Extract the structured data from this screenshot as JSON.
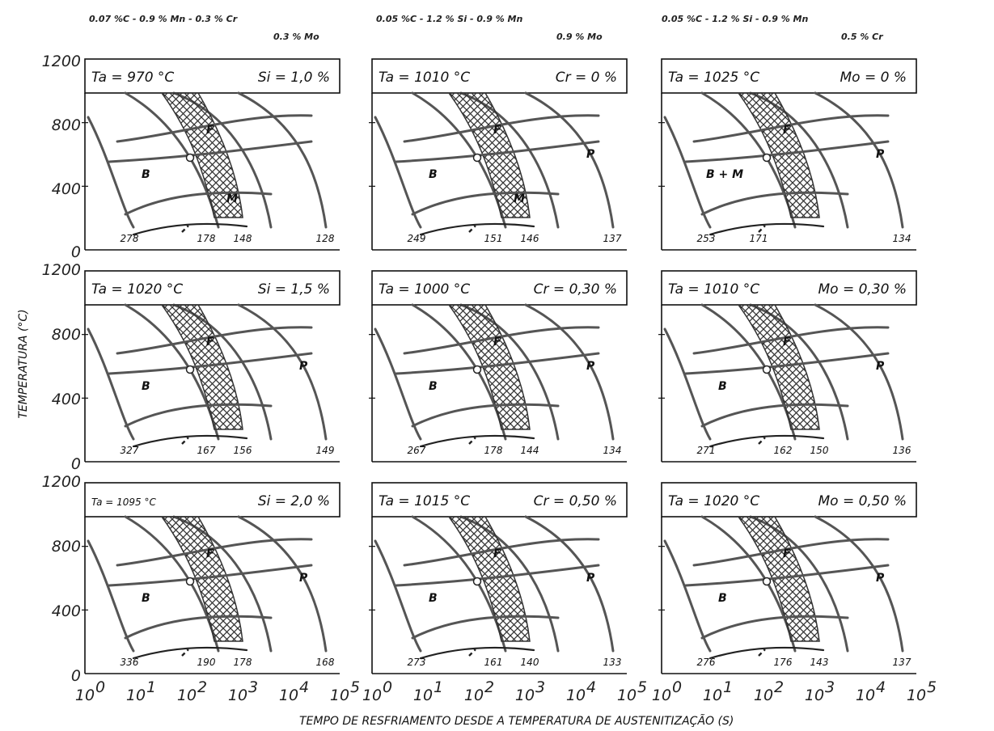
{
  "figure": {
    "column_headers": [
      {
        "line1": "0.07 %C - 0.9 % Mn - 0.3 % Cr",
        "line2": "0.3 % Mo"
      },
      {
        "line1": "0.05 %C - 1.2 % Si - 0.9 % Mn",
        "line2": "0.9 % Mo"
      },
      {
        "line1": "0.05 %C - 1.2 % Si - 0.9 % Mn",
        "line2": "0.5 % Cr"
      }
    ],
    "y_axis_label": "TEMPERATURA (°C)",
    "x_axis_label": "TEMPO DE RESFRIAMENTO DESDE A TEMPERATURA DE AUSTENITIZAÇÃO (S)",
    "y_ticks": [
      "0",
      "400",
      "800",
      "1200"
    ],
    "x_ticks": [
      {
        "base": "10",
        "exp": "0"
      },
      {
        "base": "10",
        "exp": "1"
      },
      {
        "base": "10",
        "exp": "2"
      },
      {
        "base": "10",
        "exp": "3"
      },
      {
        "base": "10",
        "exp": "4"
      },
      {
        "base": "10",
        "exp": "5"
      }
    ],
    "phase_labels": {
      "ferrite": "F",
      "pearlite": "P",
      "bainite": "B",
      "martensite": "M",
      "bainite_martensite": "B + M"
    }
  },
  "chart_data": [
    {
      "type": "line",
      "row": 0,
      "col": 0,
      "title_left": "Ta = 970 °C",
      "title_right": "Si = 1,0 %",
      "phases": [
        "F",
        "B",
        "M"
      ],
      "hardness": [
        "278",
        "178",
        "148",
        "128"
      ],
      "ylim": [
        0,
        1200
      ],
      "xlim_log10": [
        0,
        5
      ]
    },
    {
      "type": "line",
      "row": 0,
      "col": 1,
      "title_left": "Ta = 1010 °C",
      "title_right": "Cr = 0 %",
      "phases": [
        "F",
        "P",
        "B",
        "M"
      ],
      "hardness": [
        "249",
        "151",
        "146",
        "137"
      ],
      "ylim": [
        0,
        1200
      ],
      "xlim_log10": [
        0,
        5
      ]
    },
    {
      "type": "line",
      "row": 0,
      "col": 2,
      "title_left": "Ta = 1025 °C",
      "title_right": "Mo = 0 %",
      "phases": [
        "F",
        "P",
        "B + M"
      ],
      "hardness": [
        "253",
        "171",
        "134"
      ],
      "ylim": [
        0,
        1200
      ],
      "xlim_log10": [
        0,
        5
      ]
    },
    {
      "type": "line",
      "row": 1,
      "col": 0,
      "title_left": "Ta = 1020 °C",
      "title_right": "Si = 1,5 %",
      "phases": [
        "F",
        "P",
        "B"
      ],
      "hardness": [
        "327",
        "167",
        "156",
        "149"
      ],
      "ylim": [
        0,
        1200
      ],
      "xlim_log10": [
        0,
        5
      ]
    },
    {
      "type": "line",
      "row": 1,
      "col": 1,
      "title_left": "Ta = 1000 °C",
      "title_right": "Cr = 0,30 %",
      "phases": [
        "F",
        "P",
        "B"
      ],
      "hardness": [
        "267",
        "178",
        "144",
        "134"
      ],
      "ylim": [
        0,
        1200
      ],
      "xlim_log10": [
        0,
        5
      ]
    },
    {
      "type": "line",
      "row": 1,
      "col": 2,
      "title_left": "Ta = 1010 °C",
      "title_right": "Mo = 0,30 %",
      "phases": [
        "F",
        "P",
        "B"
      ],
      "hardness": [
        "271",
        "162",
        "150",
        "136"
      ],
      "ylim": [
        0,
        1200
      ],
      "xlim_log10": [
        0,
        5
      ]
    },
    {
      "type": "line",
      "row": 2,
      "col": 0,
      "title_left": "Ta = 1095 °C",
      "title_right": "Si = 2,0 %",
      "phases": [
        "F",
        "P",
        "B"
      ],
      "hardness": [
        "336",
        "190",
        "178",
        "168"
      ],
      "ylim": [
        0,
        1200
      ],
      "xlim_log10": [
        0,
        5
      ]
    },
    {
      "type": "line",
      "row": 2,
      "col": 1,
      "title_left": "Ta = 1015 °C",
      "title_right": "Cr = 0,50 %",
      "phases": [
        "F",
        "P",
        "B"
      ],
      "hardness": [
        "273",
        "161",
        "140",
        "133"
      ],
      "ylim": [
        0,
        1200
      ],
      "xlim_log10": [
        0,
        5
      ]
    },
    {
      "type": "line",
      "row": 2,
      "col": 2,
      "title_left": "Ta = 1020 °C",
      "title_right": "Mo = 0,50 %",
      "phases": [
        "F",
        "P",
        "B"
      ],
      "hardness": [
        "276",
        "176",
        "143",
        "137"
      ],
      "ylim": [
        0,
        1200
      ],
      "xlim_log10": [
        0,
        5
      ]
    }
  ]
}
